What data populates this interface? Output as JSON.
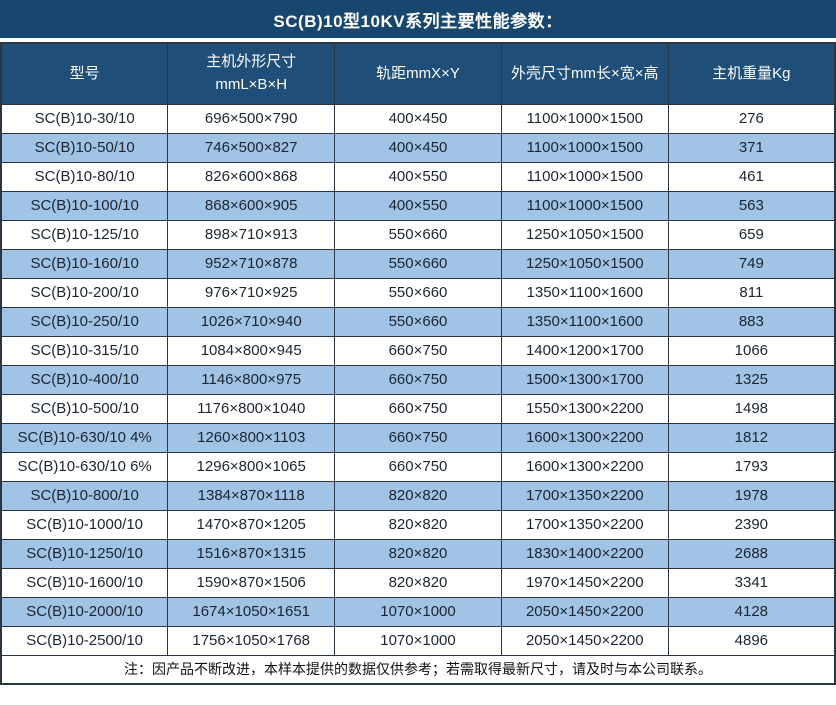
{
  "title": "SC(B)10型10KV系列主要性能参数：",
  "colors": {
    "title_bg": "#17466F",
    "header_bg": "#1F4E79",
    "row_alt_bg": "#A0C3E6",
    "border": "#2B3642",
    "header_text": "#FFFFFF",
    "body_text": "#1C2530"
  },
  "table": {
    "columns": [
      {
        "key": "model",
        "label": "型号"
      },
      {
        "key": "main-dimensions",
        "label": "主机外形尺寸\nmmL×B×H"
      },
      {
        "key": "rail-gauge",
        "label": "轨距mmX×Y"
      },
      {
        "key": "shell-dimensions",
        "label": "外壳尺寸mm长×宽×高"
      },
      {
        "key": "weight",
        "label": "主机重量Kg"
      }
    ],
    "rows": [
      [
        "SC(B)10-30/10",
        "696×500×790",
        "400×450",
        "1100×1000×1500",
        "276"
      ],
      [
        "SC(B)10-50/10",
        "746×500×827",
        "400×450",
        "1100×1000×1500",
        "371"
      ],
      [
        "SC(B)10-80/10",
        "826×600×868",
        "400×550",
        "1100×1000×1500",
        "461"
      ],
      [
        "SC(B)10-100/10",
        "868×600×905",
        "400×550",
        "1100×1000×1500",
        "563"
      ],
      [
        "SC(B)10-125/10",
        "898×710×913",
        "550×660",
        "1250×1050×1500",
        "659"
      ],
      [
        "SC(B)10-160/10",
        "952×710×878",
        "550×660",
        "1250×1050×1500",
        "749"
      ],
      [
        "SC(B)10-200/10",
        "976×710×925",
        "550×660",
        "1350×1100×1600",
        "811"
      ],
      [
        "SC(B)10-250/10",
        "1026×710×940",
        "550×660",
        "1350×1100×1600",
        "883"
      ],
      [
        "SC(B)10-315/10",
        "1084×800×945",
        "660×750",
        "1400×1200×1700",
        "1066"
      ],
      [
        "SC(B)10-400/10",
        "1146×800×975",
        "660×750",
        "1500×1300×1700",
        "1325"
      ],
      [
        "SC(B)10-500/10",
        "1176×800×1040",
        "660×750",
        "1550×1300×2200",
        "1498"
      ],
      [
        "SC(B)10-630/10 4%",
        "1260×800×1103",
        "660×750",
        "1600×1300×2200",
        "1812"
      ],
      [
        "SC(B)10-630/10 6%",
        "1296×800×1065",
        "660×750",
        "1600×1300×2200",
        "1793"
      ],
      [
        "SC(B)10-800/10",
        "1384×870×1118",
        "820×820",
        "1700×1350×2200",
        "1978"
      ],
      [
        "SC(B)10-1000/10",
        "1470×870×1205",
        "820×820",
        "1700×1350×2200",
        "2390"
      ],
      [
        "SC(B)10-1250/10",
        "1516×870×1315",
        "820×820",
        "1830×1400×2200",
        "2688"
      ],
      [
        "SC(B)10-1600/10",
        "1590×870×1506",
        "820×820",
        "1970×1450×2200",
        "3341"
      ],
      [
        "SC(B)10-2000/10",
        "1674×1050×1651",
        "1070×1000",
        "2050×1450×2200",
        "4128"
      ],
      [
        "SC(B)10-2500/10",
        "1756×1050×1768",
        "1070×1000",
        "2050×1450×2200",
        "4896"
      ]
    ],
    "note": "注：因产品不断改进，本样本提供的数据仅供参考；若需取得最新尺寸，请及时与本公司联系。"
  }
}
